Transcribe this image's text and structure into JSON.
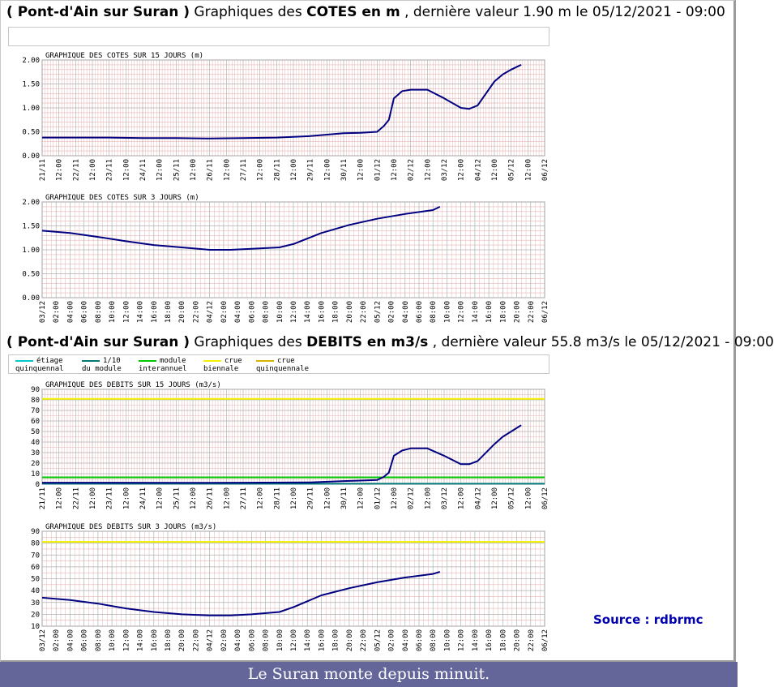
{
  "header_cotes": {
    "station": "( Pont-d'Ain sur Suran )",
    "prefix": "Graphiques des",
    "bold": "COTES en m",
    "suffix": ", dernière valeur 1.90 m le 05/12/2021 - 09:00"
  },
  "header_debits": {
    "station": "( Pont-d'Ain sur Suran )",
    "prefix": "Graphiques des",
    "bold": "DEBITS en m3/s",
    "suffix": ", dernière valeur 55.8 m3/s le 05/12/2021 - 09:00"
  },
  "legend": [
    {
      "l1": "étiage",
      "l2": "quinquennal",
      "color": "#00c8c8"
    },
    {
      "l1": "1/10",
      "l2": "du module",
      "color": "#007878"
    },
    {
      "l1": "module",
      "l2": "interannuel",
      "color": "#00c800"
    },
    {
      "l1": "crue",
      "l2": "biennale",
      "color": "#f0f000"
    },
    {
      "l1": "crue",
      "l2": "quinquennale",
      "color": "#d8b400"
    }
  ],
  "source": "Source : rdbrmc",
  "caption": "Le Suran monte depuis minuit.",
  "colors": {
    "series": "#000080",
    "grid_minor": "#e8b4b4",
    "grid_major": "#b0b0b0"
  },
  "chart_data": [
    {
      "type": "line",
      "title": "GRAPHIQUE DES COTES SUR 15 JOURS (m)",
      "ylim": [
        0,
        2
      ],
      "yticks": [
        "0.00",
        "0.50",
        "1.00",
        "1.50",
        "2.00"
      ],
      "xticks": [
        "21/11",
        "12:00",
        "22/11",
        "12:00",
        "23/11",
        "12:00",
        "24/11",
        "12:00",
        "25/11",
        "12:00",
        "26/11",
        "12:00",
        "27/11",
        "12:00",
        "28/11",
        "12:00",
        "29/11",
        "12:00",
        "30/11",
        "12:00",
        "01/12",
        "12:00",
        "02/12",
        "12:00",
        "03/12",
        "12:00",
        "04/12",
        "12:00",
        "05/12",
        "12:00",
        "06/12"
      ],
      "x": [
        0,
        2,
        4,
        6,
        8,
        10,
        12,
        14,
        16,
        18,
        19,
        20,
        20.4,
        20.7,
        21,
        21.5,
        22,
        23,
        24,
        25,
        25.5,
        26,
        27,
        27.5,
        28,
        28.3,
        28.6
      ],
      "y": [
        0.38,
        0.38,
        0.38,
        0.37,
        0.37,
        0.36,
        0.37,
        0.38,
        0.41,
        0.47,
        0.48,
        0.5,
        0.62,
        0.75,
        1.2,
        1.35,
        1.38,
        1.38,
        1.2,
        1.0,
        0.98,
        1.05,
        1.55,
        1.7,
        1.8,
        1.85,
        1.9
      ]
    },
    {
      "type": "line",
      "title": "GRAPHIQUE DES COTES SUR 3 JOURS (m)",
      "ylim": [
        0,
        2
      ],
      "yticks": [
        "0.00",
        "0.50",
        "1.00",
        "1.50",
        "2.00"
      ],
      "xticks": [
        "03/12",
        "02:00",
        "04:00",
        "06:00",
        "08:00",
        "10:00",
        "12:00",
        "14:00",
        "16:00",
        "18:00",
        "20:00",
        "22:00",
        "04/12",
        "02:00",
        "04:00",
        "06:00",
        "08:00",
        "10:00",
        "12:00",
        "14:00",
        "16:00",
        "18:00",
        "20:00",
        "22:00",
        "05/12",
        "02:00",
        "04:00",
        "06:00",
        "08:00",
        "10:00",
        "12:00",
        "14:00",
        "16:00",
        "18:00",
        "20:00",
        "22:00",
        "06/12"
      ],
      "x": [
        0,
        4,
        8,
        12,
        16,
        20,
        24,
        27,
        30,
        34,
        36,
        40,
        44,
        48,
        52,
        56,
        57
      ],
      "y": [
        1.4,
        1.35,
        1.27,
        1.18,
        1.1,
        1.05,
        1.0,
        1.0,
        1.02,
        1.05,
        1.12,
        1.35,
        1.52,
        1.65,
        1.75,
        1.83,
        1.9
      ]
    },
    {
      "type": "line",
      "title": "GRAPHIQUE DES DEBITS SUR 15 JOURS (m3/s)",
      "ylim": [
        0,
        90
      ],
      "yticks": [
        "0",
        "10",
        "20",
        "30",
        "40",
        "50",
        "60",
        "70",
        "80",
        "90"
      ],
      "xticks": [
        "21/11",
        "12:00",
        "22/11",
        "12:00",
        "23/11",
        "12:00",
        "24/11",
        "12:00",
        "25/11",
        "12:00",
        "26/11",
        "12:00",
        "27/11",
        "12:00",
        "28/11",
        "12:00",
        "29/11",
        "12:00",
        "30/11",
        "12:00",
        "01/12",
        "12:00",
        "02/12",
        "12:00",
        "03/12",
        "12:00",
        "04/12",
        "12:00",
        "05/12",
        "12:00",
        "06/12"
      ],
      "x": [
        0,
        4,
        8,
        12,
        16,
        18,
        19,
        20,
        20.4,
        20.7,
        21,
        21.5,
        22,
        23,
        24,
        25,
        25.5,
        26,
        27,
        27.5,
        28,
        28.3,
        28.6
      ],
      "y": [
        1.5,
        1.5,
        1.3,
        1.5,
        1.8,
        3,
        3.5,
        4,
        7,
        11,
        27,
        32,
        34,
        34,
        27,
        19,
        19,
        22,
        38,
        45,
        50,
        53,
        56
      ],
      "ref_lines": [
        {
          "value": 81,
          "color": "#f0f000"
        },
        {
          "value": 6.5,
          "color": "#00c800"
        },
        {
          "value": 0.5,
          "color": "#007878"
        }
      ]
    },
    {
      "type": "line",
      "title": "GRAPHIQUE DES DEBITS SUR 3 JOURS (m3/s)",
      "ylim": [
        10,
        90
      ],
      "yticks": [
        "10",
        "20",
        "30",
        "40",
        "50",
        "60",
        "70",
        "80",
        "90"
      ],
      "xticks": [
        "03/12",
        "02:00",
        "04:00",
        "06:00",
        "08:00",
        "10:00",
        "12:00",
        "14:00",
        "16:00",
        "18:00",
        "20:00",
        "22:00",
        "04/12",
        "02:00",
        "04:00",
        "06:00",
        "08:00",
        "10:00",
        "12:00",
        "14:00",
        "16:00",
        "18:00",
        "20:00",
        "22:00",
        "05/12",
        "02:00",
        "04:00",
        "06:00",
        "08:00",
        "10:00",
        "12:00",
        "14:00",
        "16:00",
        "18:00",
        "20:00",
        "22:00",
        "06/12"
      ],
      "x": [
        0,
        4,
        8,
        12,
        16,
        20,
        24,
        27,
        30,
        34,
        36,
        40,
        44,
        48,
        52,
        56,
        57
      ],
      "y": [
        34,
        32,
        29,
        25,
        22,
        20,
        19,
        19,
        20,
        22,
        26,
        36,
        42,
        47,
        51,
        54,
        55.8
      ],
      "ref_lines": [
        {
          "value": 81,
          "color": "#f0f000"
        }
      ]
    }
  ]
}
